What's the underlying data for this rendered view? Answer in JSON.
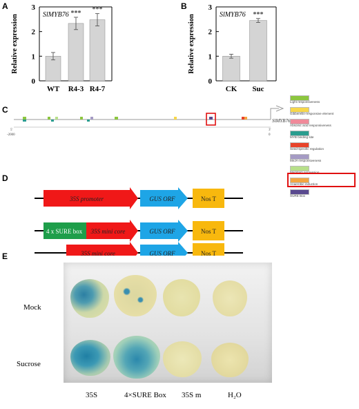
{
  "panels": {
    "A": "A",
    "B": "B",
    "C": "C",
    "D": "D",
    "E": "E"
  },
  "chart_data": [
    {
      "type": "bar",
      "panel": "A",
      "title": "SlMYB76",
      "ylabel": "Relative expression",
      "xlabel": "",
      "categories": [
        "WT",
        "R4-3",
        "R4-7"
      ],
      "values": [
        1.0,
        2.33,
        2.48
      ],
      "errors": [
        0.15,
        0.25,
        0.25
      ],
      "significance": [
        "",
        "***",
        "***"
      ],
      "ylim": [
        0,
        3
      ],
      "yticks": [
        0,
        1,
        2,
        3
      ],
      "bar_color": "#d4d4d4"
    },
    {
      "type": "bar",
      "panel": "B",
      "title": "SlMYB76",
      "ylabel": "Relative expression",
      "xlabel": "",
      "categories": [
        "CK",
        "Suc"
      ],
      "values": [
        1.0,
        2.45
      ],
      "errors": [
        0.08,
        0.08
      ],
      "significance": [
        "",
        "***"
      ],
      "ylim": [
        0,
        3
      ],
      "yticks": [
        0,
        1,
        2,
        3
      ],
      "bar_color": "#d4d4d4"
    }
  ],
  "promoter_map": {
    "gene_label": "SlMYB76",
    "start_label": "-2000",
    "end_label": "0",
    "start_tick": "5'",
    "end_tick": "3'"
  },
  "legend": [
    {
      "label": "Light responsiveness",
      "color": "#8cc63f"
    },
    {
      "label": "Gibberellin-responsive element",
      "color": "#f7d74a"
    },
    {
      "label": "Abscisic acid responsiveness",
      "color": "#f08a9a"
    },
    {
      "label": "MYB binding site",
      "color": "#2a9d8f"
    },
    {
      "label": "Seed-specific regulation",
      "color": "#e8432a"
    },
    {
      "label": "MeJA-responsiveness",
      "color": "#a59bc4"
    },
    {
      "label": "Meristem expression",
      "color": "#b7df8a"
    },
    {
      "label": "Anaerobic induction",
      "color": "#f4a640"
    },
    {
      "label": "SURE Box",
      "color": "#5a4a8f"
    }
  ],
  "constructs": [
    {
      "promoter": "35S promoter",
      "orf": "GUS ORF",
      "terminator": "Nos T",
      "sure": ""
    },
    {
      "promoter": "35S mini core",
      "orf": "GUS ORF",
      "terminator": "Nos T",
      "sure": "4 x SURE box"
    },
    {
      "promoter": "35S mini core",
      "orf": "GUS ORF",
      "terminator": "Nos T",
      "sure": ""
    }
  ],
  "assay": {
    "rows": [
      "Mock",
      "Sucrose"
    ],
    "columns": [
      "35S",
      "4×SURE Box",
      "35S m",
      "H₂O"
    ]
  }
}
